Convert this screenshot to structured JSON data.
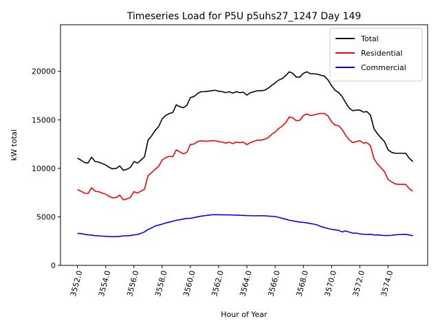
{
  "chart_data": {
    "type": "line",
    "title": "Timeseries Load for P5U p5uhs27_1247  Day 149",
    "xlabel": "Hour of Year",
    "ylabel": "kW total",
    "xlim": [
      3550.8,
      3576.8
    ],
    "ylim": [
      0,
      24800
    ],
    "x_ticks": [
      3552,
      3554,
      3556,
      3558,
      3560,
      3562,
      3564,
      3566,
      3568,
      3570,
      3572,
      3574
    ],
    "x_tick_labels": [
      "3552.0",
      "3554.0",
      "3556.0",
      "3558.0",
      "3560.0",
      "3562.0",
      "3564.0",
      "3566.0",
      "3568.0",
      "3570.0",
      "3572.0",
      "3574.0"
    ],
    "y_ticks": [
      0,
      5000,
      10000,
      15000,
      20000
    ],
    "y_tick_labels": [
      "0",
      "5000",
      "10000",
      "15000",
      "20000"
    ],
    "grid": false,
    "legend_position": "top-right",
    "x_start": 3552.0,
    "x_step": 0.25,
    "series": [
      {
        "name": "Total",
        "color": "#000000",
        "values": [
          11050,
          10850,
          10600,
          10550,
          11150,
          10700,
          10650,
          10500,
          10350,
          10100,
          9950,
          10000,
          10250,
          9800,
          9900,
          10100,
          10700,
          10550,
          10850,
          11200,
          12900,
          13350,
          13900,
          14300,
          15100,
          15450,
          15650,
          15750,
          16550,
          16350,
          16250,
          16500,
          17300,
          17400,
          17700,
          17900,
          17900,
          17950,
          18000,
          18050,
          17950,
          17900,
          17800,
          17900,
          17750,
          17900,
          17800,
          17850,
          17550,
          17800,
          17900,
          18000,
          18000,
          18050,
          18250,
          18550,
          18800,
          19100,
          19250,
          19550,
          19950,
          19800,
          19400,
          19400,
          19800,
          19950,
          19750,
          19750,
          19700,
          19600,
          19500,
          19100,
          18500,
          18050,
          17800,
          17400,
          16750,
          16200,
          15950,
          16000,
          16000,
          15800,
          15850,
          15500,
          14100,
          13550,
          13150,
          12750,
          11900,
          11650,
          11550,
          11550,
          11550,
          11550,
          11050,
          10700
        ]
      },
      {
        "name": "Residential",
        "color": "#ff0000",
        "values": [
          7800,
          7650,
          7450,
          7400,
          8000,
          7650,
          7600,
          7450,
          7350,
          7100,
          6950,
          7000,
          7250,
          6750,
          6850,
          7000,
          7600,
          7450,
          7650,
          7850,
          9250,
          9550,
          9900,
          10200,
          10850,
          11100,
          11250,
          11200,
          11900,
          11700,
          11500,
          11650,
          12450,
          12500,
          12750,
          12850,
          12800,
          12800,
          12850,
          12850,
          12750,
          12700,
          12600,
          12700,
          12550,
          12700,
          12650,
          12700,
          12450,
          12650,
          12800,
          12900,
          12900,
          13000,
          13150,
          13500,
          13750,
          14100,
          14350,
          14700,
          15300,
          15200,
          14900,
          14950,
          15450,
          15600,
          15450,
          15500,
          15600,
          15650,
          15650,
          15400,
          14800,
          14450,
          14400,
          14000,
          13400,
          12950,
          12650,
          12750,
          12850,
          12600,
          12650,
          12350,
          11000,
          10450,
          10050,
          9650,
          8850,
          8600,
          8400,
          8350,
          8350,
          8350,
          7900,
          7650
        ]
      },
      {
        "name": "Commercial",
        "color": "#0000ff",
        "values": [
          3300,
          3280,
          3200,
          3150,
          3120,
          3060,
          3040,
          3020,
          2990,
          2970,
          2960,
          2960,
          2990,
          3040,
          3050,
          3080,
          3140,
          3180,
          3300,
          3450,
          3700,
          3850,
          4050,
          4150,
          4250,
          4370,
          4450,
          4550,
          4650,
          4700,
          4780,
          4840,
          4850,
          4920,
          5000,
          5070,
          5120,
          5170,
          5210,
          5230,
          5210,
          5210,
          5200,
          5200,
          5190,
          5180,
          5160,
          5150,
          5130,
          5120,
          5110,
          5120,
          5110,
          5120,
          5080,
          5060,
          5030,
          4950,
          4850,
          4760,
          4650,
          4590,
          4520,
          4460,
          4430,
          4380,
          4310,
          4250,
          4150,
          4000,
          3900,
          3800,
          3720,
          3660,
          3600,
          3450,
          3550,
          3430,
          3320,
          3320,
          3250,
          3200,
          3190,
          3200,
          3140,
          3130,
          3110,
          3080,
          3080,
          3100,
          3150,
          3170,
          3190,
          3200,
          3130,
          3050
        ]
      }
    ]
  }
}
